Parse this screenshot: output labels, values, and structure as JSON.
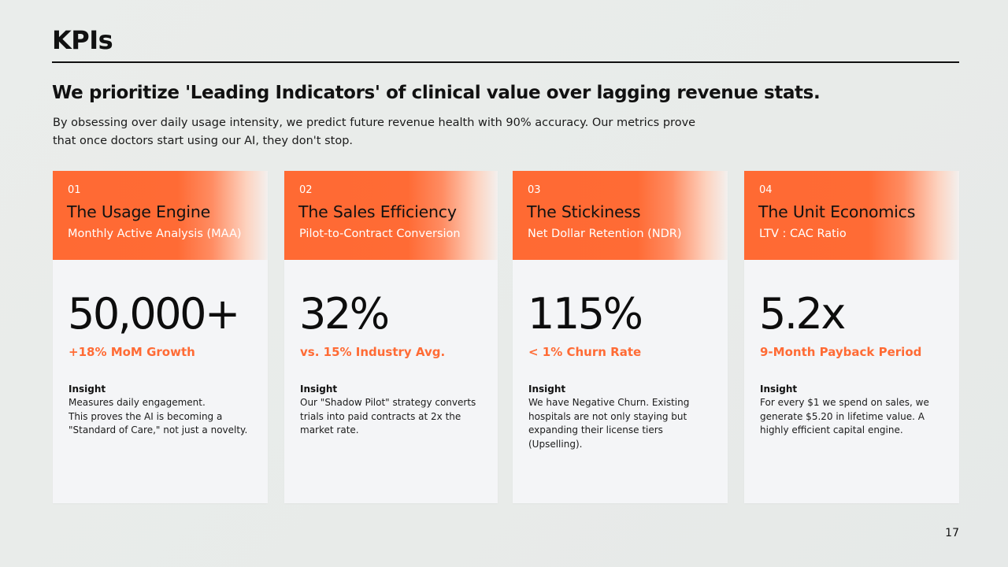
{
  "slide": {
    "title": "KPIs",
    "headline": "We prioritize 'Leading Indicators' of clinical value over lagging revenue stats.",
    "subtext": "By obsessing over daily usage intensity, we predict future revenue health with 90% accuracy. Our metrics prove that once doctors start using our AI, they don't stop.",
    "page_number": "17"
  },
  "colors": {
    "accent": "#ff6b35",
    "card_background": "#f4f5f7",
    "text": "#111111"
  },
  "cards": [
    {
      "number": "01",
      "title": "The Usage Engine",
      "subtitle": "Monthly Active Analysis (MAA)",
      "value": "50,000+",
      "metric": "+18% MoM Growth",
      "insight_label": "Insight",
      "insight": "Measures daily engagement.\nThis proves the AI is becoming a \"Standard of Care,\" not just a novelty."
    },
    {
      "number": "02",
      "title": "The Sales Efficiency",
      "subtitle": "Pilot-to-Contract Conversion",
      "value": "32%",
      "metric": "vs. 15% Industry Avg.",
      "insight_label": "Insight",
      "insight": "Our \"Shadow Pilot\" strategy converts trials into paid contracts at 2x the market rate."
    },
    {
      "number": "03",
      "title": "The Stickiness",
      "subtitle": "Net Dollar Retention (NDR)",
      "value": "115%",
      "metric": "< 1% Churn Rate",
      "insight_label": "Insight",
      "insight": "We have Negative Churn. Existing hospitals are not only staying but expanding their license tiers (Upselling)."
    },
    {
      "number": "04",
      "title": "The Unit Economics",
      "subtitle": "LTV : CAC Ratio",
      "value": "5.2x",
      "metric": "9-Month Payback Period",
      "insight_label": "Insight",
      "insight": "For every $1 we spend on sales, we generate $5.20 in lifetime value. A highly efficient capital engine."
    }
  ]
}
